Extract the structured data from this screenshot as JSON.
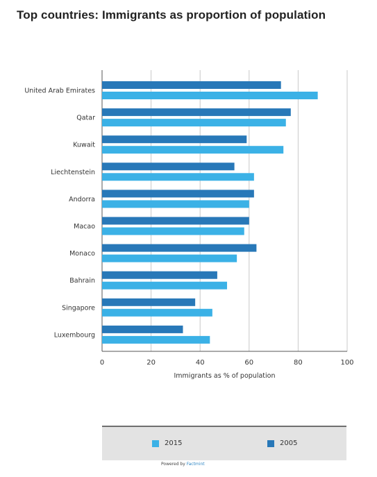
{
  "title": "Top countries: Immigrants as proportion of population",
  "chart_data": {
    "type": "bar",
    "orientation": "horizontal",
    "title": "Top countries: Immigrants as proportion of population",
    "xlabel": "Immigrants as % of population",
    "ylabel": "",
    "xlim": [
      0,
      100
    ],
    "xticks": [
      "0",
      "20",
      "40",
      "60",
      "80",
      "100"
    ],
    "grid": true,
    "legend_position": "bottom",
    "categories": [
      "United Arab Emirates",
      "Qatar",
      "Kuwait",
      "Liechtenstein",
      "Andorra",
      "Macao",
      "Monaco",
      "Bahrain",
      "Singapore",
      "Luxembourg"
    ],
    "series": [
      {
        "name": "2005",
        "color": "#2878b8",
        "values": [
          73,
          77,
          59,
          54,
          62,
          60,
          63,
          47,
          38,
          33
        ]
      },
      {
        "name": "2015",
        "color": "#3bb1e6",
        "values": [
          88,
          75,
          74,
          62,
          60,
          58,
          55,
          51,
          45,
          44
        ]
      }
    ]
  },
  "legend": {
    "items": [
      {
        "label": "2015",
        "color": "#3bb1e6"
      },
      {
        "label": "2005",
        "color": "#2878b8"
      }
    ]
  },
  "footer": {
    "powered_prefix": "Powered by",
    "powered_brand": "Factmint"
  }
}
